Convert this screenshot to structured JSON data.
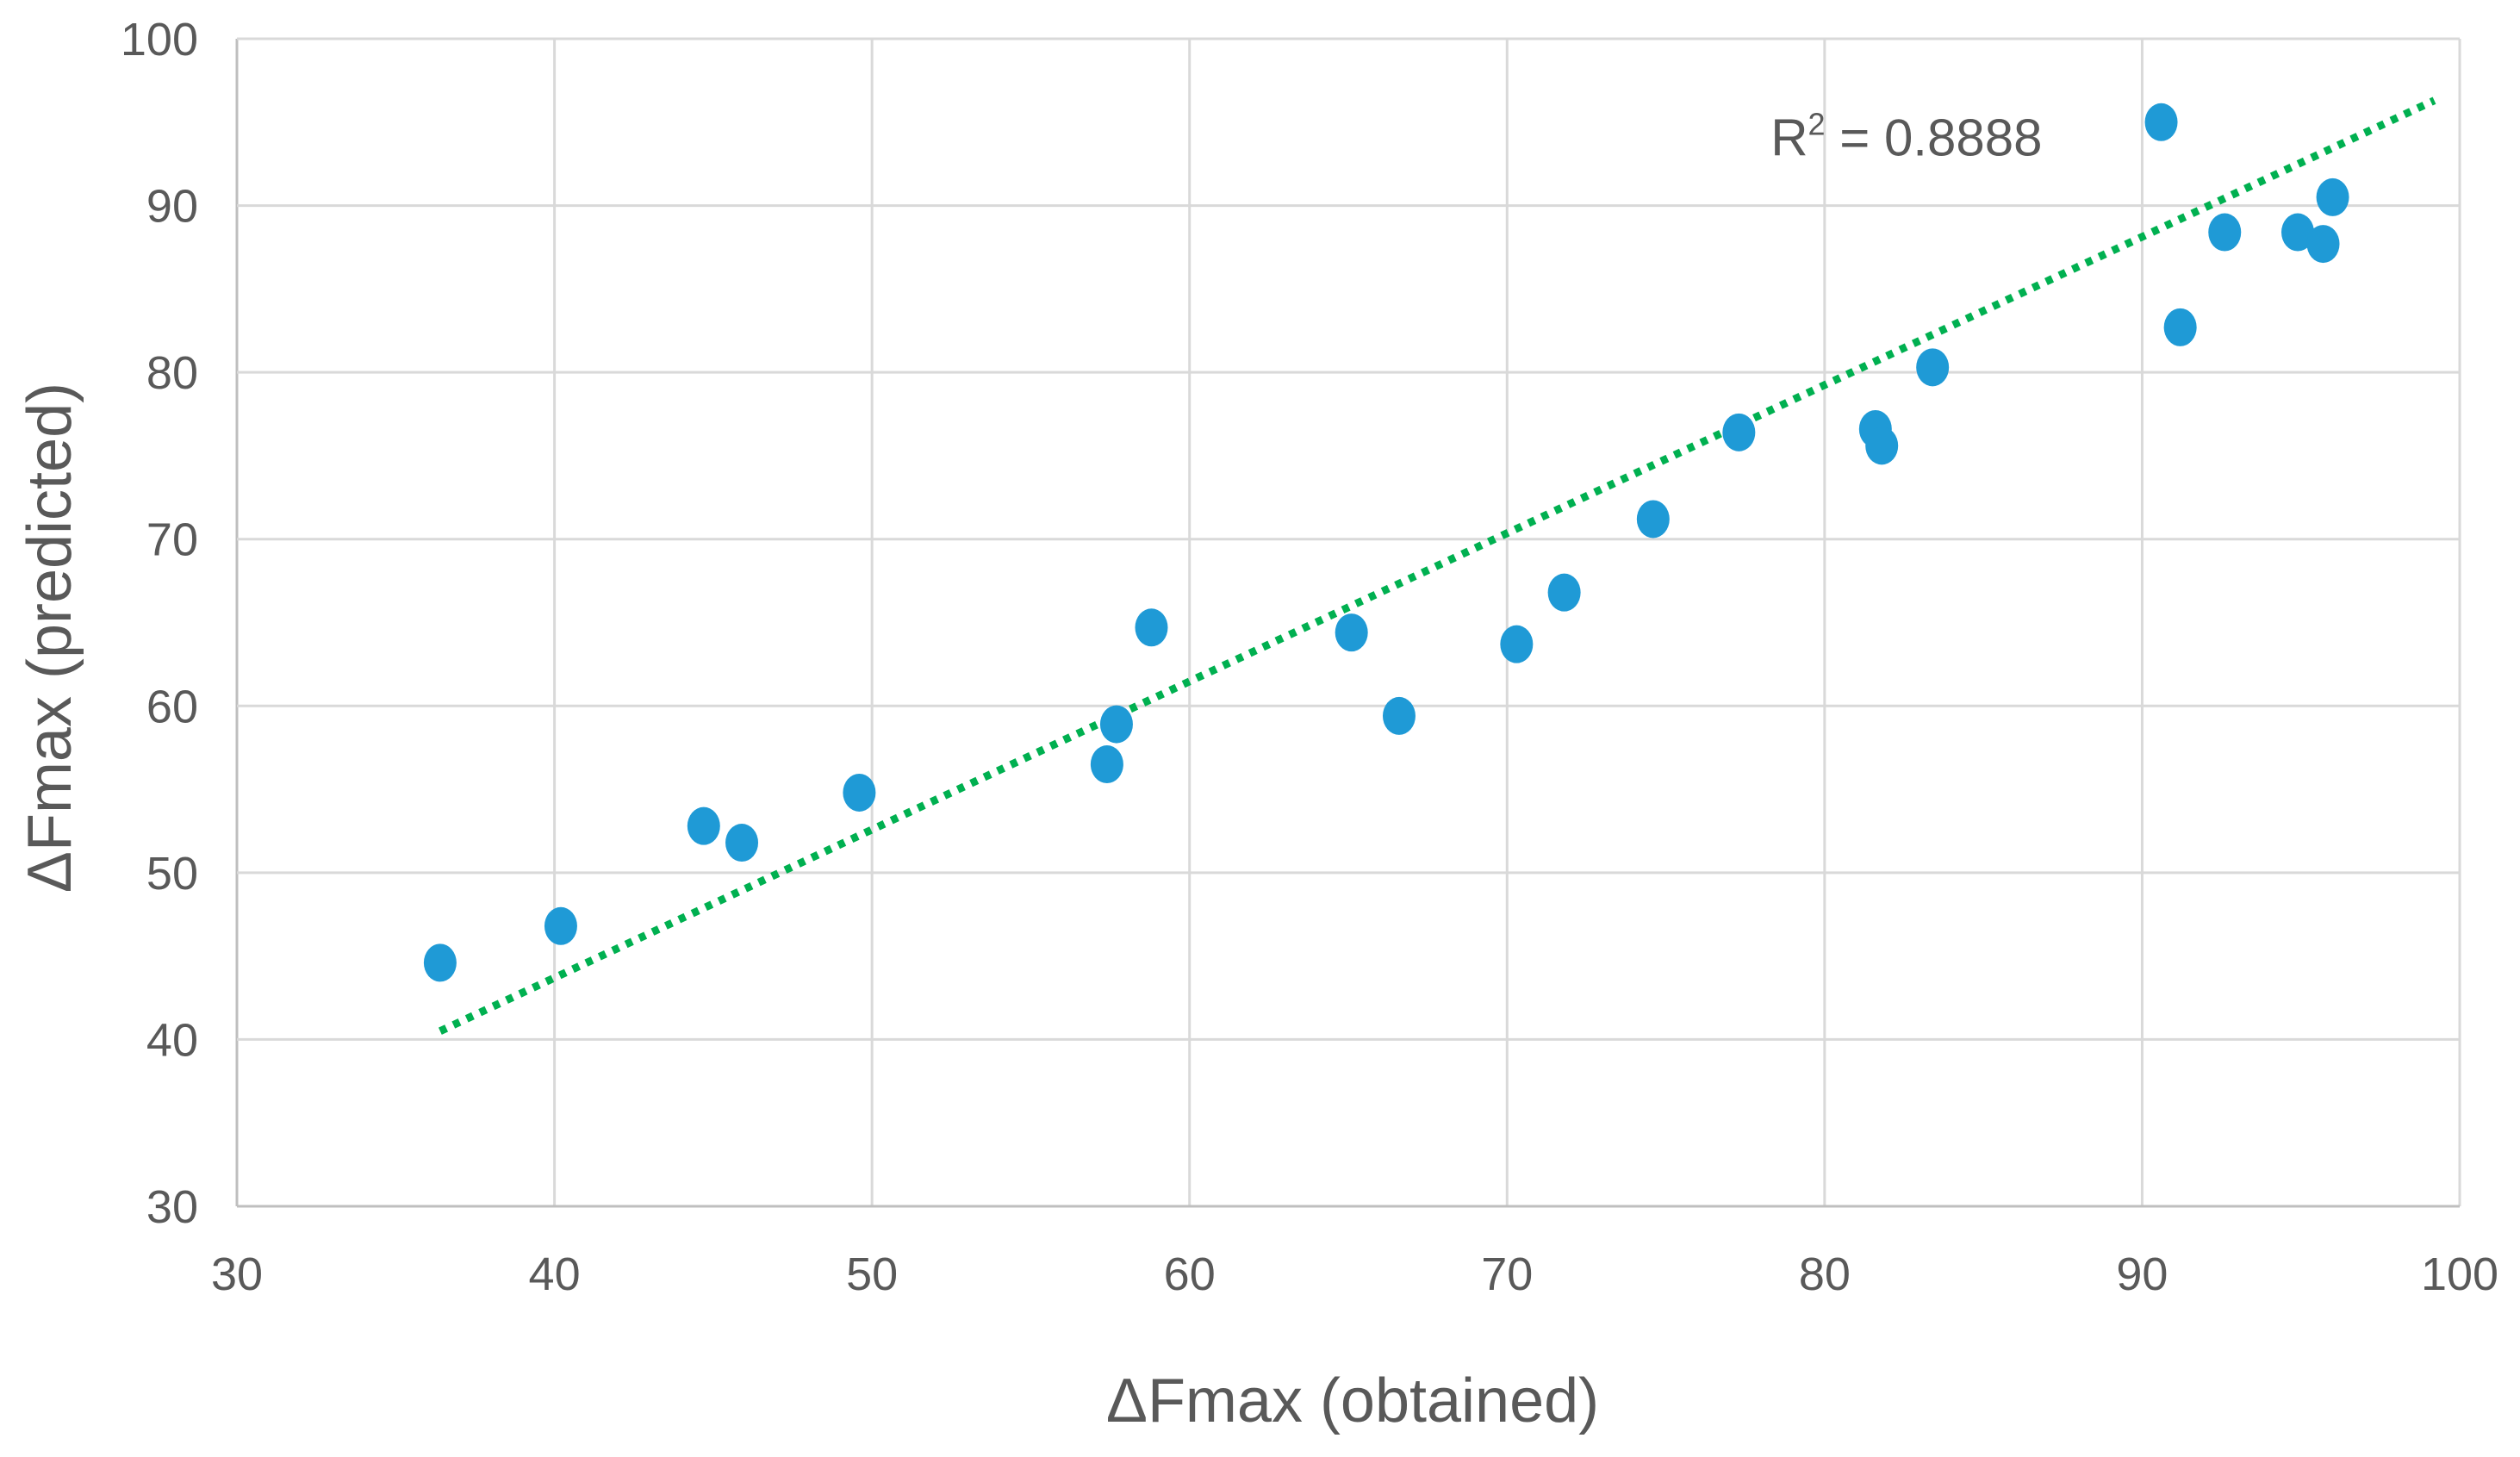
{
  "chart_data": {
    "type": "scatter",
    "title": "",
    "xlabel": "ΔFmax (obtained)",
    "ylabel": "ΔFmax (predicted)",
    "xlim": [
      30,
      100
    ],
    "ylim": [
      30,
      100
    ],
    "x_ticks": [
      30,
      40,
      50,
      60,
      70,
      80,
      90,
      100
    ],
    "y_ticks": [
      30,
      40,
      50,
      60,
      70,
      80,
      90,
      100
    ],
    "grid": true,
    "series": [
      {
        "name": "data",
        "color": "#1f9ad6",
        "points": [
          {
            "x": 36.4,
            "y": 44.6
          },
          {
            "x": 40.2,
            "y": 46.8
          },
          {
            "x": 44.7,
            "y": 52.8
          },
          {
            "x": 45.9,
            "y": 51.8
          },
          {
            "x": 49.6,
            "y": 54.8
          },
          {
            "x": 57.4,
            "y": 56.5
          },
          {
            "x": 57.7,
            "y": 58.9
          },
          {
            "x": 58.8,
            "y": 64.7
          },
          {
            "x": 65.1,
            "y": 64.4
          },
          {
            "x": 66.6,
            "y": 59.4
          },
          {
            "x": 70.3,
            "y": 63.7
          },
          {
            "x": 71.8,
            "y": 66.8
          },
          {
            "x": 74.6,
            "y": 71.2
          },
          {
            "x": 77.3,
            "y": 76.4
          },
          {
            "x": 81.6,
            "y": 76.6
          },
          {
            "x": 81.8,
            "y": 75.6
          },
          {
            "x": 83.4,
            "y": 80.3
          },
          {
            "x": 90.6,
            "y": 95.0
          },
          {
            "x": 91.2,
            "y": 82.7
          },
          {
            "x": 92.6,
            "y": 88.4
          },
          {
            "x": 94.9,
            "y": 88.4
          },
          {
            "x": 95.7,
            "y": 87.7
          },
          {
            "x": 96.0,
            "y": 90.5
          }
        ]
      }
    ],
    "trendline": {
      "type": "linear",
      "style": "dotted",
      "color": "#00b050",
      "from": {
        "x": 36.4,
        "y": 40.5
      },
      "to": {
        "x": 99.2,
        "y": 96.3
      }
    },
    "annotations": [
      {
        "text_main": "R",
        "text_sup": "2",
        "text_rest": " = 0.8888",
        "x": 78.3,
        "y": 93.0
      }
    ]
  }
}
